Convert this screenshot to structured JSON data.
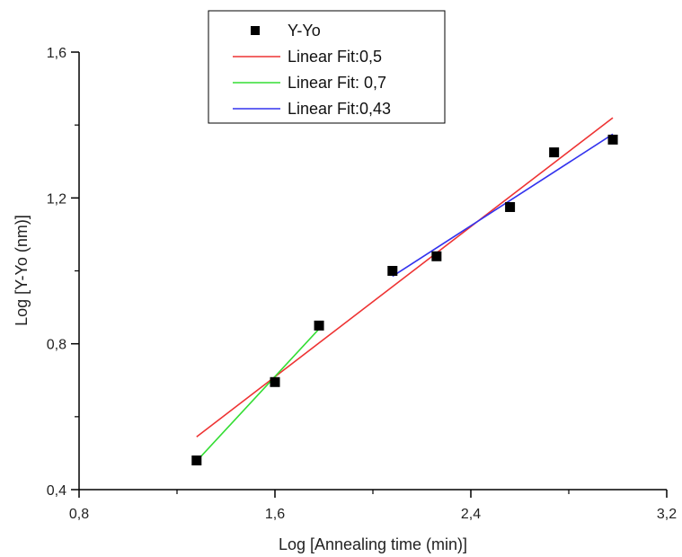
{
  "chart_data": {
    "type": "scatter",
    "xlabel": "Log [Annealing time (min)]",
    "ylabel": "Log [Y-Yo (nm)]",
    "xlim": [
      0.8,
      3.2
    ],
    "ylim": [
      0.4,
      1.6
    ],
    "x_ticks": [
      "0,8",
      "1,6",
      "2,4",
      "3,2"
    ],
    "y_ticks": [
      "0,4",
      "0,8",
      "1,2",
      "1,6"
    ],
    "x_tick_values": [
      0.8,
      1.6,
      2.4,
      3.2
    ],
    "y_tick_values": [
      0.4,
      0.8,
      1.2,
      1.6
    ],
    "legend_position": "top-left",
    "series": [
      {
        "name": "Y-Yo",
        "kind": "points",
        "color": "#000000",
        "x": [
          1.28,
          1.6,
          1.78,
          2.08,
          2.26,
          2.56,
          2.74,
          2.98
        ],
        "y": [
          0.48,
          0.695,
          0.85,
          1.0,
          1.04,
          1.175,
          1.325,
          1.36
        ]
      },
      {
        "name": "Linear Fit:0,5",
        "kind": "line",
        "color": "#ee3333",
        "x": [
          1.28,
          2.98
        ],
        "y": [
          0.545,
          1.42
        ]
      },
      {
        "name": "Linear Fit: 0,7",
        "kind": "line",
        "color": "#33dd33",
        "x": [
          1.28,
          1.79
        ],
        "y": [
          0.478,
          0.848
        ]
      },
      {
        "name": "Linear Fit:0,43",
        "kind": "line",
        "color": "#3333ee",
        "x": [
          2.08,
          2.98
        ],
        "y": [
          0.985,
          1.375
        ]
      }
    ]
  }
}
